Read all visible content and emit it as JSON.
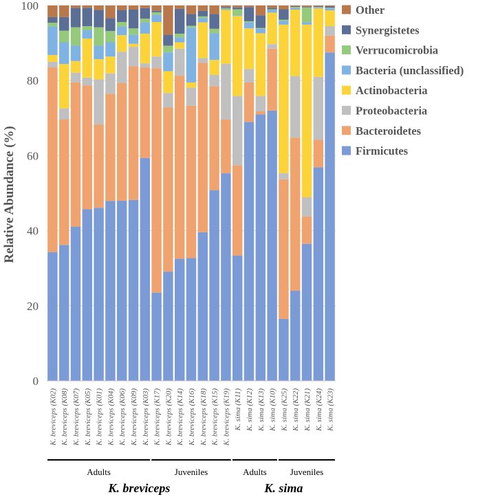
{
  "chart_data": {
    "type": "bar",
    "stacked": true,
    "ylabel": "Relative Abundance (%)",
    "ylim": [
      0,
      100
    ],
    "yticks": [
      0,
      20,
      40,
      60,
      80,
      100
    ],
    "grid": true,
    "legend_position": "top-right",
    "categories": [
      "K. breviceps (K02)",
      "K. breviceps (K08)",
      "K. breviceps (K07)",
      "K. breviceps (K05)",
      "K. breviceps (K01)",
      "K. breviceps (K04)",
      "K. breviceps (K06)",
      "K. breviceps (K09)",
      "K. breviceps (K03)",
      "K. breviceps (K17)",
      "K. breviceps (K20)",
      "K. breviceps (K14)",
      "K. breviceps (K16)",
      "K. breviceps (K18)",
      "K. breviceps (K15)",
      "K. breviceps (K19)",
      "K. sima (K11)",
      "K. sima (K12)",
      "K. sima (K13)",
      "K. sima (K10)",
      "K. sima (K25)",
      "K. sima (K22)",
      "K. sima (K21)",
      "K. sima (K24)",
      "K. sima (K23)"
    ],
    "series": [
      {
        "name": "Firmicutes",
        "color": "#7b9bd6",
        "values": [
          34.3,
          36.2,
          41.1,
          45.7,
          46.1,
          47.9,
          48.0,
          48.2,
          59.4,
          23.5,
          29.1,
          32.5,
          32.7,
          39.6,
          50.8,
          55.3,
          33.4,
          69.0,
          71.0,
          72.0,
          16.5,
          24.0,
          36.5,
          56.9,
          87.5
        ]
      },
      {
        "name": "Bacteroidetes",
        "color": "#f0a36e",
        "values": [
          49.2,
          33.4,
          38.4,
          33.0,
          22.2,
          28.6,
          31.3,
          35.6,
          24.1,
          59.8,
          43.7,
          48.8,
          40.6,
          45.1,
          27.7,
          14.3,
          24.0,
          10.5,
          0.8,
          16.5,
          37.2,
          40.8,
          7.3,
          7.3,
          4.5
        ]
      },
      {
        "name": "Proteobacteria",
        "color": "#c0c0c0",
        "values": [
          1.5,
          3.0,
          2.6,
          2.1,
          12.0,
          5.4,
          8.4,
          5.2,
          1.1,
          3.1,
          3.9,
          7.2,
          4.8,
          1.3,
          3.0,
          14.9,
          18.5,
          3.6,
          4.1,
          1.2,
          1.6,
          16.4,
          5.1,
          16.8,
          2.5
        ]
      },
      {
        "name": "Actinobacteria",
        "color": "#fcd43a",
        "values": [
          1.8,
          11.8,
          3.1,
          10.4,
          5.4,
          4.5,
          4.4,
          0.8,
          7.9,
          9.2,
          5.8,
          1.7,
          1.4,
          9.5,
          4.0,
          14.3,
          21.3,
          10.8,
          16.7,
          8.4,
          39.6,
          17.7,
          46.0,
          18.2,
          4.2
        ]
      },
      {
        "name": "Bacteria (unclassified)",
        "color": "#7eb3e4",
        "values": [
          7.6,
          5.8,
          4.1,
          2.2,
          3.6,
          3.8,
          2.3,
          2.4,
          3.0,
          1.9,
          5.0,
          1.3,
          14.6,
          1.1,
          7.1,
          0.2,
          0.2,
          1.6,
          1.2,
          0.7,
          1.0,
          0.4,
          0.6,
          0.2,
          0.5
        ]
      },
      {
        "name": "Verrucomicrobia",
        "color": "#95c97c",
        "values": [
          1.0,
          3.1,
          4.9,
          1.1,
          4.9,
          3.0,
          1.2,
          1.7,
          1.0,
          0.7,
          1.8,
          1.0,
          0.5,
          0.5,
          1.2,
          0.3,
          1.6,
          0.3,
          0.2,
          0.2,
          0.3,
          0.3,
          4.0,
          0.2,
          0.2
        ]
      },
      {
        "name": "Synergistetes",
        "color": "#5b6f96",
        "values": [
          1.5,
          3.6,
          5.2,
          4.9,
          4.6,
          3.4,
          3.2,
          5.0,
          2.8,
          0.4,
          2.9,
          6.6,
          3.1,
          1.5,
          3.9,
          0.3,
          0.5,
          3.8,
          3.4,
          0.4,
          2.8,
          0.2,
          0.2,
          0.2,
          0.4
        ]
      },
      {
        "name": "Other",
        "color": "#b8784b",
        "values": [
          3.1,
          3.1,
          0.6,
          0.6,
          1.2,
          3.4,
          1.2,
          1.1,
          0.7,
          1.4,
          7.8,
          0.9,
          2.3,
          1.4,
          2.3,
          0.4,
          0.5,
          0.4,
          2.6,
          0.6,
          1.0,
          0.2,
          0.3,
          0.2,
          0.2
        ]
      }
    ],
    "groups": [
      {
        "label": "Adults",
        "start": 0,
        "end": 8
      },
      {
        "label": "Juveniles",
        "start": 9,
        "end": 15
      },
      {
        "label": "Adults",
        "start": 16,
        "end": 19
      },
      {
        "label": "Juveniles",
        "start": 20,
        "end": 24
      }
    ],
    "species": [
      {
        "label": "K. breviceps",
        "start": 0,
        "end": 15
      },
      {
        "label": "K. sima",
        "start": 16,
        "end": 24
      }
    ]
  }
}
